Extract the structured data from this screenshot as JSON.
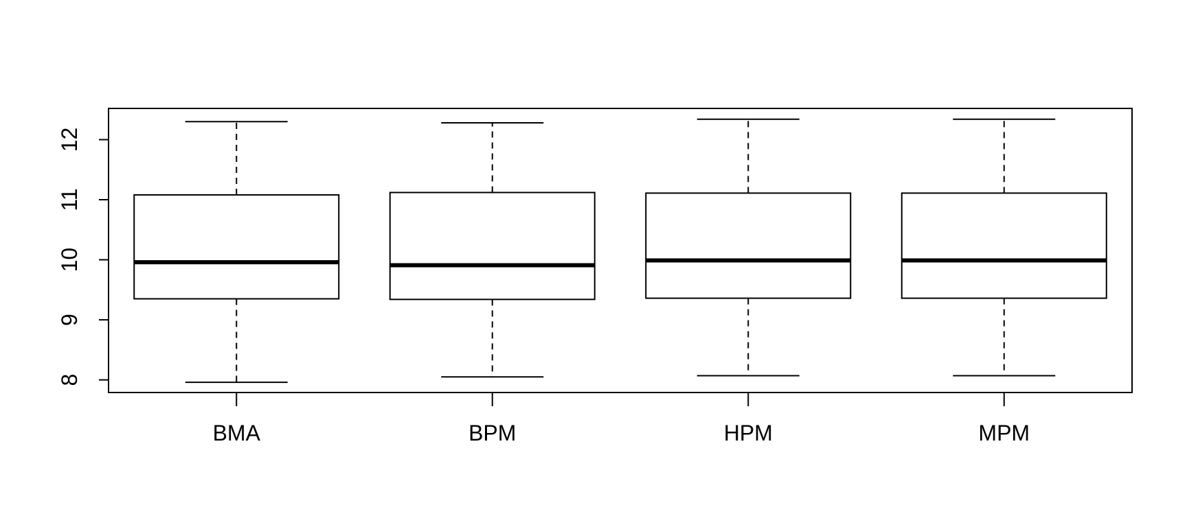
{
  "chart_data": {
    "type": "boxplot",
    "title": "",
    "xlabel": "",
    "ylabel": "",
    "categories": [
      "BMA",
      "BPM",
      "HPM",
      "MPM"
    ],
    "boxes": [
      {
        "name": "BMA",
        "whisker_low": 7.96,
        "q1": 9.35,
        "median": 9.96,
        "q3": 11.08,
        "whisker_high": 12.3
      },
      {
        "name": "BPM",
        "whisker_low": 8.05,
        "q1": 9.34,
        "median": 9.91,
        "q3": 11.12,
        "whisker_high": 12.28
      },
      {
        "name": "HPM",
        "whisker_low": 8.07,
        "q1": 9.36,
        "median": 9.99,
        "q3": 11.11,
        "whisker_high": 12.34
      },
      {
        "name": "MPM",
        "whisker_low": 8.07,
        "q1": 9.36,
        "median": 9.99,
        "q3": 11.11,
        "whisker_high": 12.34
      }
    ],
    "y_ticks": [
      8,
      9,
      10,
      11,
      12
    ],
    "y_tick_labels": [
      "8",
      "9",
      "10",
      "11",
      "12"
    ],
    "ylim": [
      7.79,
      12.52
    ],
    "grid": false,
    "colors": {
      "box_fill": "#ffffff",
      "line": "#000000",
      "median": "#000000"
    }
  }
}
